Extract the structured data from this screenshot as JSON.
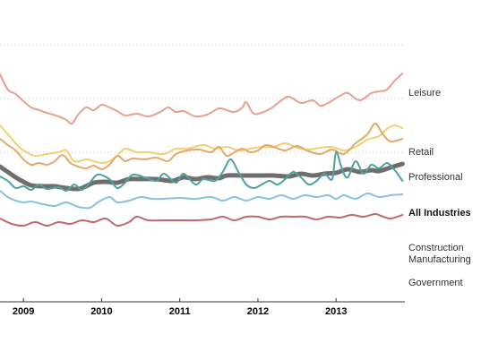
{
  "chart_data": {
    "type": "line",
    "title": "",
    "xlabel": "",
    "ylabel": "",
    "xlim": [
      2008.7,
      2013.88
    ],
    "ylim": [
      -10,
      290
    ],
    "x_ticks": [
      {
        "value": 2009,
        "label": "2009"
      },
      {
        "value": 2010,
        "label": "2010"
      },
      {
        "value": 2011,
        "label": "2011"
      },
      {
        "value": 2012,
        "label": "2012"
      },
      {
        "value": 2013,
        "label": "2013"
      }
    ],
    "gridlines_y": [
      280,
      220,
      160
    ],
    "legend": "direct labels at right end of each line",
    "series": [
      {
        "name": "Leisure",
        "color": "#e8a090",
        "width": 2,
        "points": [
          [
            2008.7,
            247
          ],
          [
            2008.8,
            230
          ],
          [
            2008.9,
            225
          ],
          [
            2009.0,
            217
          ],
          [
            2009.1,
            210
          ],
          [
            2009.2,
            207
          ],
          [
            2009.3,
            204
          ],
          [
            2009.45,
            200
          ],
          [
            2009.55,
            196
          ],
          [
            2009.62,
            192
          ],
          [
            2009.7,
            202
          ],
          [
            2009.8,
            210
          ],
          [
            2009.9,
            207
          ],
          [
            2010.0,
            213
          ],
          [
            2010.1,
            210
          ],
          [
            2010.2,
            206
          ],
          [
            2010.3,
            201
          ],
          [
            2010.45,
            203
          ],
          [
            2010.6,
            200
          ],
          [
            2010.75,
            205
          ],
          [
            2010.85,
            210
          ],
          [
            2010.95,
            205
          ],
          [
            2011.05,
            206
          ],
          [
            2011.2,
            200
          ],
          [
            2011.35,
            202
          ],
          [
            2011.5,
            209
          ],
          [
            2011.6,
            207
          ],
          [
            2011.7,
            205
          ],
          [
            2011.8,
            210
          ],
          [
            2011.85,
            216
          ],
          [
            2011.95,
            203
          ],
          [
            2012.1,
            206
          ],
          [
            2012.2,
            211
          ],
          [
            2012.3,
            218
          ],
          [
            2012.4,
            222
          ],
          [
            2012.55,
            215
          ],
          [
            2012.7,
            218
          ],
          [
            2012.8,
            212
          ],
          [
            2012.9,
            215
          ],
          [
            2013.05,
            223
          ],
          [
            2013.15,
            226
          ],
          [
            2013.3,
            218
          ],
          [
            2013.45,
            226
          ],
          [
            2013.55,
            228
          ],
          [
            2013.65,
            230
          ],
          [
            2013.75,
            240
          ],
          [
            2013.85,
            248
          ]
        ]
      },
      {
        "name": "Retail",
        "color": "#f0d070",
        "width": 2,
        "points": [
          [
            2008.7,
            190
          ],
          [
            2008.8,
            180
          ],
          [
            2008.9,
            170
          ],
          [
            2009.0,
            162
          ],
          [
            2009.15,
            156
          ],
          [
            2009.3,
            158
          ],
          [
            2009.45,
            160
          ],
          [
            2009.55,
            162
          ],
          [
            2009.65,
            150
          ],
          [
            2009.8,
            152
          ],
          [
            2009.9,
            150
          ],
          [
            2010.0,
            148
          ],
          [
            2010.1,
            150
          ],
          [
            2010.2,
            156
          ],
          [
            2010.3,
            164
          ],
          [
            2010.45,
            160
          ],
          [
            2010.6,
            160
          ],
          [
            2010.8,
            158
          ],
          [
            2010.95,
            164
          ],
          [
            2011.1,
            164
          ],
          [
            2011.3,
            168
          ],
          [
            2011.45,
            164
          ],
          [
            2011.6,
            166
          ],
          [
            2011.75,
            162
          ],
          [
            2011.9,
            164
          ],
          [
            2012.05,
            166
          ],
          [
            2012.2,
            166
          ],
          [
            2012.35,
            170
          ],
          [
            2012.5,
            165
          ],
          [
            2012.65,
            163
          ],
          [
            2012.8,
            165
          ],
          [
            2012.95,
            166
          ],
          [
            2013.1,
            162
          ],
          [
            2013.25,
            166
          ],
          [
            2013.4,
            174
          ],
          [
            2013.55,
            178
          ],
          [
            2013.65,
            186
          ],
          [
            2013.75,
            190
          ],
          [
            2013.85,
            187
          ]
        ]
      },
      {
        "name": "Professional",
        "color": "#e6a868",
        "width": 2,
        "points": [
          [
            2008.7,
            175
          ],
          [
            2008.8,
            168
          ],
          [
            2008.9,
            162
          ],
          [
            2009.0,
            152
          ],
          [
            2009.1,
            146
          ],
          [
            2009.2,
            148
          ],
          [
            2009.3,
            146
          ],
          [
            2009.4,
            150
          ],
          [
            2009.5,
            157
          ],
          [
            2009.6,
            148
          ],
          [
            2009.7,
            144
          ],
          [
            2009.8,
            142
          ],
          [
            2009.9,
            145
          ],
          [
            2010.0,
            141
          ],
          [
            2010.1,
            146
          ],
          [
            2010.2,
            156
          ],
          [
            2010.3,
            150
          ],
          [
            2010.4,
            153
          ],
          [
            2010.55,
            152
          ],
          [
            2010.7,
            154
          ],
          [
            2010.85,
            150
          ],
          [
            2010.95,
            158
          ],
          [
            2011.1,
            162
          ],
          [
            2011.25,
            163
          ],
          [
            2011.4,
            160
          ],
          [
            2011.5,
            166
          ],
          [
            2011.6,
            156
          ],
          [
            2011.7,
            160
          ],
          [
            2011.8,
            164
          ],
          [
            2011.9,
            160
          ],
          [
            2012.0,
            162
          ],
          [
            2012.1,
            168
          ],
          [
            2012.2,
            166
          ],
          [
            2012.35,
            162
          ],
          [
            2012.5,
            167
          ],
          [
            2012.65,
            161
          ],
          [
            2012.8,
            158
          ],
          [
            2012.95,
            163
          ],
          [
            2013.1,
            158
          ],
          [
            2013.25,
            170
          ],
          [
            2013.4,
            180
          ],
          [
            2013.5,
            192
          ],
          [
            2013.6,
            180
          ],
          [
            2013.7,
            172
          ],
          [
            2013.85,
            175
          ]
        ]
      },
      {
        "name": "All Industries",
        "color": "#6e6e6e",
        "width": 5,
        "points": [
          [
            2008.7,
            144
          ],
          [
            2008.8,
            138
          ],
          [
            2008.9,
            132
          ],
          [
            2009.0,
            127
          ],
          [
            2009.1,
            123
          ],
          [
            2009.25,
            122
          ],
          [
            2009.4,
            122
          ],
          [
            2009.55,
            120
          ],
          [
            2009.7,
            119
          ],
          [
            2009.8,
            122
          ],
          [
            2009.9,
            126
          ],
          [
            2010.05,
            127
          ],
          [
            2010.2,
            126
          ],
          [
            2010.35,
            130
          ],
          [
            2010.5,
            130
          ],
          [
            2010.7,
            130
          ],
          [
            2010.9,
            128
          ],
          [
            2011.05,
            132
          ],
          [
            2011.2,
            130
          ],
          [
            2011.35,
            132
          ],
          [
            2011.5,
            131
          ],
          [
            2011.6,
            134
          ],
          [
            2011.8,
            134
          ],
          [
            2012.0,
            134
          ],
          [
            2012.2,
            134
          ],
          [
            2012.4,
            133
          ],
          [
            2012.55,
            136
          ],
          [
            2012.7,
            134
          ],
          [
            2012.85,
            136
          ],
          [
            2013.0,
            137
          ],
          [
            2013.15,
            141
          ],
          [
            2013.3,
            138
          ],
          [
            2013.45,
            140
          ],
          [
            2013.55,
            139
          ],
          [
            2013.7,
            143
          ],
          [
            2013.85,
            147
          ]
        ]
      },
      {
        "name": "Construction",
        "color": "#4fa0a0",
        "width": 2,
        "points": [
          [
            2008.7,
            133
          ],
          [
            2008.8,
            128
          ],
          [
            2008.9,
            120
          ],
          [
            2009.0,
            122
          ],
          [
            2009.1,
            118
          ],
          [
            2009.2,
            124
          ],
          [
            2009.3,
            119
          ],
          [
            2009.45,
            121
          ],
          [
            2009.55,
            117
          ],
          [
            2009.65,
            124
          ],
          [
            2009.75,
            118
          ],
          [
            2009.85,
            126
          ],
          [
            2009.95,
            135
          ],
          [
            2010.1,
            130
          ],
          [
            2010.2,
            120
          ],
          [
            2010.3,
            126
          ],
          [
            2010.4,
            135
          ],
          [
            2010.55,
            132
          ],
          [
            2010.7,
            128
          ],
          [
            2010.8,
            136
          ],
          [
            2010.95,
            126
          ],
          [
            2011.05,
            136
          ],
          [
            2011.2,
            124
          ],
          [
            2011.3,
            130
          ],
          [
            2011.45,
            128
          ],
          [
            2011.55,
            138
          ],
          [
            2011.65,
            152
          ],
          [
            2011.75,
            138
          ],
          [
            2011.85,
            124
          ],
          [
            2011.95,
            120
          ],
          [
            2012.05,
            124
          ],
          [
            2012.15,
            128
          ],
          [
            2012.25,
            124
          ],
          [
            2012.35,
            130
          ],
          [
            2012.45,
            138
          ],
          [
            2012.55,
            132
          ],
          [
            2012.65,
            124
          ],
          [
            2012.75,
            128
          ],
          [
            2012.85,
            136
          ],
          [
            2012.95,
            130
          ],
          [
            2013.0,
            160
          ],
          [
            2013.08,
            140
          ],
          [
            2013.15,
            132
          ],
          [
            2013.25,
            150
          ],
          [
            2013.35,
            136
          ],
          [
            2013.45,
            146
          ],
          [
            2013.55,
            142
          ],
          [
            2013.65,
            148
          ],
          [
            2013.75,
            140
          ],
          [
            2013.85,
            128
          ]
        ]
      },
      {
        "name": "Manufacturing",
        "color": "#86c2e0",
        "width": 2,
        "points": [
          [
            2008.7,
            117
          ],
          [
            2008.8,
            110
          ],
          [
            2008.9,
            106
          ],
          [
            2009.0,
            104
          ],
          [
            2009.1,
            105
          ],
          [
            2009.25,
            102
          ],
          [
            2009.4,
            100
          ],
          [
            2009.55,
            104
          ],
          [
            2009.7,
            99
          ],
          [
            2009.85,
            98
          ],
          [
            2009.95,
            104
          ],
          [
            2010.1,
            110
          ],
          [
            2010.2,
            104
          ],
          [
            2010.35,
            106
          ],
          [
            2010.5,
            110
          ],
          [
            2010.65,
            108
          ],
          [
            2010.8,
            108
          ],
          [
            2011.0,
            109
          ],
          [
            2011.2,
            108
          ],
          [
            2011.4,
            110
          ],
          [
            2011.55,
            106
          ],
          [
            2011.7,
            110
          ],
          [
            2011.85,
            106
          ],
          [
            2012.0,
            110
          ],
          [
            2012.15,
            108
          ],
          [
            2012.3,
            112
          ],
          [
            2012.45,
            108
          ],
          [
            2012.6,
            112
          ],
          [
            2012.75,
            110
          ],
          [
            2012.9,
            112
          ],
          [
            2013.0,
            108
          ],
          [
            2013.1,
            112
          ],
          [
            2013.25,
            108
          ],
          [
            2013.4,
            114
          ],
          [
            2013.55,
            110
          ],
          [
            2013.7,
            112
          ],
          [
            2013.85,
            113
          ]
        ]
      },
      {
        "name": "Government",
        "color": "#c06868",
        "width": 2,
        "points": [
          [
            2008.7,
            86
          ],
          [
            2008.85,
            80
          ],
          [
            2009.0,
            78
          ],
          [
            2009.15,
            82
          ],
          [
            2009.3,
            78
          ],
          [
            2009.45,
            82
          ],
          [
            2009.6,
            80
          ],
          [
            2009.75,
            84
          ],
          [
            2009.9,
            82
          ],
          [
            2010.05,
            86
          ],
          [
            2010.2,
            78
          ],
          [
            2010.35,
            82
          ],
          [
            2010.45,
            88
          ],
          [
            2010.6,
            84
          ],
          [
            2010.8,
            84
          ],
          [
            2011.0,
            84
          ],
          [
            2011.2,
            84
          ],
          [
            2011.4,
            85
          ],
          [
            2011.55,
            88
          ],
          [
            2011.7,
            84
          ],
          [
            2011.85,
            88
          ],
          [
            2012.0,
            88
          ],
          [
            2012.15,
            85
          ],
          [
            2012.3,
            88
          ],
          [
            2012.45,
            88
          ],
          [
            2012.6,
            88
          ],
          [
            2012.75,
            85
          ],
          [
            2012.9,
            88
          ],
          [
            2013.05,
            87
          ],
          [
            2013.2,
            90
          ],
          [
            2013.35,
            88
          ],
          [
            2013.5,
            91
          ],
          [
            2013.6,
            88
          ],
          [
            2013.7,
            86
          ],
          [
            2013.85,
            90
          ]
        ]
      }
    ]
  },
  "labels": {
    "leisure": "Leisure",
    "retail": "Retail",
    "professional": "Professional",
    "all_industries": "All Industries",
    "construction": "Construction",
    "manufacturing": "Manufacturing",
    "government": "Government"
  }
}
